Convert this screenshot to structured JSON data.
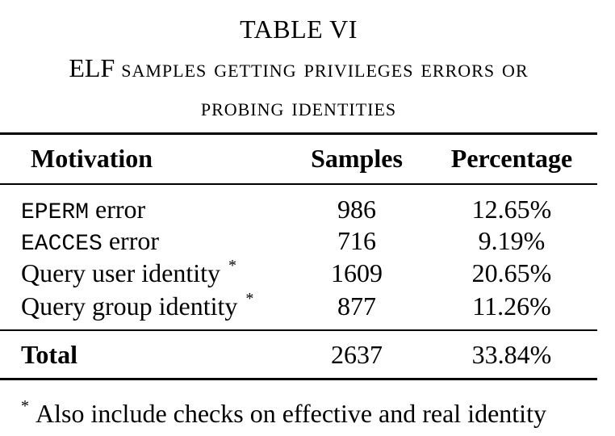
{
  "table": {
    "number": "TABLE VI",
    "caption_lead": "ELF",
    "caption_line1_rest": "samples getting privileges errors or",
    "caption_line2": "probing identities",
    "headers": [
      "Motivation",
      "Samples",
      "Percentage"
    ],
    "rows": [
      {
        "code": "EPERM",
        "label": " error",
        "marker": "",
        "samples": "986",
        "percentage": "12.65%"
      },
      {
        "code": "EACCES",
        "label": " error",
        "marker": "",
        "samples": "716",
        "percentage": "9.19%"
      },
      {
        "code": "",
        "label": "Query user identity",
        "marker": "*",
        "samples": "1609",
        "percentage": "20.65%"
      },
      {
        "code": "",
        "label": "Query group identity",
        "marker": "*",
        "samples": "877",
        "percentage": "11.26%"
      }
    ],
    "total": {
      "label": "Total",
      "samples": "2637",
      "percentage": "33.84%"
    },
    "footnote_marker": "*",
    "footnote_text": "Also include checks on effective and real identity"
  }
}
